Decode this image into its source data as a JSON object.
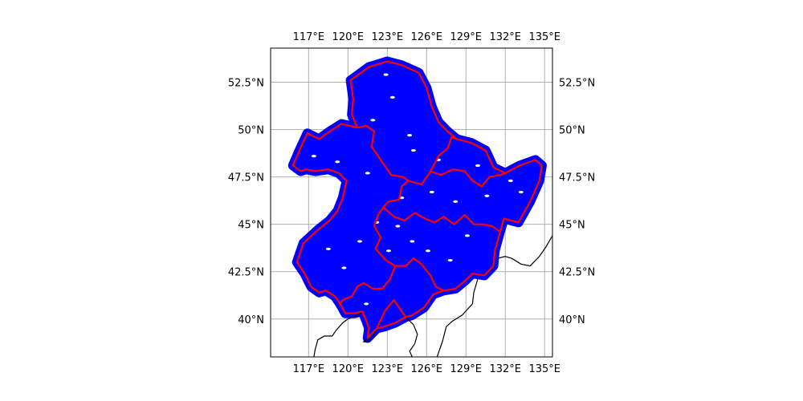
{
  "figure": {
    "background_color": "#ffffff",
    "title": ""
  },
  "map": {
    "projection": "plate-carree",
    "extent": {
      "lon_min": 114.1,
      "lon_max": 135.6,
      "lat_min": 38.0,
      "lat_max": 54.3
    },
    "gridlines": true,
    "grid_color": "#b0b0b0",
    "lon_ticks": [
      {
        "value": 117,
        "label": "117°E"
      },
      {
        "value": 120,
        "label": "120°E"
      },
      {
        "value": 123,
        "label": "123°E"
      },
      {
        "value": 126,
        "label": "126°E"
      },
      {
        "value": 129,
        "label": "129°E"
      },
      {
        "value": 132,
        "label": "132°E"
      },
      {
        "value": 135,
        "label": "135°E"
      }
    ],
    "lat_ticks": [
      {
        "value": 52.5,
        "label": "52.5°N"
      },
      {
        "value": 50,
        "label": "50°N"
      },
      {
        "value": 47.5,
        "label": "47.5°N"
      },
      {
        "value": 45,
        "label": "45°N"
      },
      {
        "value": 42.5,
        "label": "42.5°N"
      },
      {
        "value": 40,
        "label": "40°N"
      }
    ],
    "label_sides": {
      "lon": [
        "top",
        "bottom"
      ],
      "lat": [
        "left",
        "right"
      ]
    },
    "layers": {
      "points": {
        "color": "#0000ff",
        "description_name": "scatter-points-blue"
      },
      "boundaries": {
        "color": "#ff0000"
      },
      "coastline": {
        "color": "#000000"
      }
    },
    "region_outline": [
      [
        115.8,
        48.1
      ],
      [
        116.3,
        48.9
      ],
      [
        116.9,
        49.8
      ],
      [
        117.8,
        49.5
      ],
      [
        118.6,
        49.9
      ],
      [
        119.5,
        50.3
      ],
      [
        120.7,
        50.1
      ],
      [
        120.3,
        50.8
      ],
      [
        120.4,
        51.6
      ],
      [
        120.2,
        52.6
      ],
      [
        121.6,
        53.3
      ],
      [
        123.0,
        53.6
      ],
      [
        124.1,
        53.4
      ],
      [
        125.4,
        53.0
      ],
      [
        126.0,
        52.2
      ],
      [
        126.4,
        51.2
      ],
      [
        126.9,
        50.4
      ],
      [
        127.6,
        49.9
      ],
      [
        128.3,
        49.5
      ],
      [
        129.4,
        49.3
      ],
      [
        130.5,
        48.9
      ],
      [
        131.1,
        48.0
      ],
      [
        132.0,
        47.7
      ],
      [
        133.1,
        48.1
      ],
      [
        134.3,
        48.4
      ],
      [
        134.8,
        48.1
      ],
      [
        134.6,
        47.3
      ],
      [
        133.9,
        46.2
      ],
      [
        133.0,
        45.1
      ],
      [
        131.9,
        45.3
      ],
      [
        131.6,
        44.6
      ],
      [
        131.2,
        43.6
      ],
      [
        131.1,
        42.8
      ],
      [
        130.4,
        42.3
      ],
      [
        129.5,
        42.4
      ],
      [
        128.9,
        42.0
      ],
      [
        128.2,
        41.6
      ],
      [
        127.3,
        41.5
      ],
      [
        126.5,
        41.3
      ],
      [
        125.8,
        40.6
      ],
      [
        124.9,
        40.2
      ],
      [
        124.4,
        40.1
      ],
      [
        123.6,
        39.8
      ],
      [
        122.8,
        39.6
      ],
      [
        122.2,
        39.5
      ],
      [
        121.5,
        39.0
      ],
      [
        121.6,
        39.5
      ],
      [
        121.4,
        39.9
      ],
      [
        121.1,
        40.4
      ],
      [
        120.5,
        40.3
      ],
      [
        119.8,
        40.3
      ],
      [
        119.4,
        40.8
      ],
      [
        119.0,
        41.2
      ],
      [
        118.3,
        41.5
      ],
      [
        117.8,
        41.4
      ],
      [
        117.2,
        41.7
      ],
      [
        116.7,
        42.4
      ],
      [
        116.1,
        43.0
      ],
      [
        116.6,
        44.0
      ],
      [
        117.7,
        44.7
      ],
      [
        118.6,
        45.2
      ],
      [
        119.2,
        45.7
      ],
      [
        119.6,
        46.4
      ],
      [
        119.9,
        47.3
      ],
      [
        119.3,
        47.7
      ],
      [
        118.5,
        47.9
      ],
      [
        117.5,
        47.8
      ],
      [
        116.8,
        47.9
      ],
      [
        116.4,
        47.8
      ],
      [
        115.8,
        48.1
      ]
    ],
    "province_borders": [
      [
        [
          120.7,
          50.1
        ],
        [
          121.4,
          50.2
        ],
        [
          122.0,
          49.9
        ],
        [
          121.8,
          49.1
        ],
        [
          122.4,
          48.5
        ],
        [
          122.8,
          48.1
        ],
        [
          123.3,
          47.6
        ],
        [
          124.2,
          47.5
        ],
        [
          124.6,
          47.3
        ],
        [
          124.1,
          47.0
        ],
        [
          123.9,
          46.3
        ],
        [
          123.1,
          46.2
        ],
        [
          122.7,
          45.9
        ],
        [
          122.3,
          45.5
        ],
        [
          122.0,
          44.9
        ],
        [
          122.5,
          44.3
        ],
        [
          122.1,
          43.7
        ],
        [
          122.9,
          43.1
        ],
        [
          123.6,
          42.8
        ],
        [
          123.2,
          42.1
        ],
        [
          122.6,
          41.6
        ],
        [
          121.9,
          41.6
        ],
        [
          121.2,
          41.9
        ],
        [
          120.7,
          41.7
        ],
        [
          120.3,
          41.2
        ],
        [
          119.6,
          41.0
        ],
        [
          119.4,
          40.8
        ]
      ],
      [
        [
          124.6,
          47.3
        ],
        [
          125.6,
          47.1
        ],
        [
          126.3,
          47.8
        ],
        [
          126.9,
          48.6
        ],
        [
          127.6,
          49.0
        ],
        [
          127.9,
          49.6
        ],
        [
          128.3,
          49.5
        ]
      ],
      [
        [
          126.3,
          47.8
        ],
        [
          127.1,
          47.6
        ],
        [
          128.0,
          47.9
        ],
        [
          128.9,
          47.8
        ],
        [
          129.5,
          47.3
        ],
        [
          130.2,
          47.0
        ],
        [
          130.8,
          47.5
        ],
        [
          131.6,
          47.6
        ],
        [
          132.0,
          47.7
        ]
      ],
      [
        [
          122.7,
          45.9
        ],
        [
          123.5,
          45.4
        ],
        [
          124.3,
          45.2
        ],
        [
          125.1,
          45.6
        ],
        [
          125.9,
          45.3
        ],
        [
          126.6,
          45.1
        ],
        [
          127.3,
          45.4
        ],
        [
          128.1,
          45.0
        ],
        [
          128.9,
          45.5
        ],
        [
          129.6,
          45.0
        ],
        [
          130.3,
          45.0
        ],
        [
          131.0,
          44.9
        ],
        [
          131.6,
          44.6
        ]
      ],
      [
        [
          123.6,
          42.8
        ],
        [
          124.4,
          42.8
        ],
        [
          125.0,
          43.2
        ],
        [
          125.6,
          42.9
        ],
        [
          126.3,
          42.3
        ],
        [
          126.7,
          41.7
        ],
        [
          127.3,
          41.5
        ]
      ],
      [
        [
          122.2,
          39.5
        ],
        [
          122.8,
          40.4
        ],
        [
          123.5,
          41.0
        ],
        [
          124.4,
          40.1
        ]
      ]
    ],
    "coastline_outer": [
      [
        131.4,
        43.2
      ],
      [
        132.0,
        43.3
      ],
      [
        132.5,
        43.2
      ],
      [
        133.2,
        42.9
      ],
      [
        133.9,
        42.8
      ],
      [
        134.6,
        43.3
      ],
      [
        135.1,
        43.8
      ],
      [
        135.6,
        44.4
      ]
    ],
    "coastline_korea": [
      [
        124.4,
        40.1
      ],
      [
        125.0,
        39.7
      ],
      [
        125.3,
        39.2
      ],
      [
        125.1,
        38.7
      ],
      [
        124.7,
        38.3
      ],
      [
        124.9,
        38.0
      ]
    ],
    "coastline_korea_east": [
      [
        129.9,
        42.1
      ],
      [
        129.6,
        41.4
      ],
      [
        129.5,
        40.8
      ],
      [
        128.7,
        40.2
      ],
      [
        128.0,
        39.9
      ],
      [
        127.5,
        39.6
      ],
      [
        127.2,
        38.8
      ],
      [
        126.8,
        38.0
      ]
    ],
    "coastline_china": [
      [
        121.1,
        40.4
      ],
      [
        120.7,
        40.2
      ],
      [
        120.0,
        40.0
      ],
      [
        119.6,
        39.8
      ],
      [
        119.1,
        39.4
      ],
      [
        118.8,
        39.1
      ],
      [
        118.2,
        39.1
      ],
      [
        117.7,
        38.9
      ],
      [
        117.5,
        38.4
      ],
      [
        117.4,
        38.0
      ]
    ],
    "coastline_liaodong": [
      [
        122.2,
        39.5
      ],
      [
        121.9,
        39.1
      ],
      [
        121.5,
        38.8
      ],
      [
        121.2,
        38.8
      ],
      [
        121.5,
        39.0
      ]
    ],
    "lakes": [
      [
        123.4,
        51.7
      ],
      [
        121.9,
        50.5
      ],
      [
        124.7,
        49.7
      ],
      [
        126.9,
        48.4
      ],
      [
        121.5,
        47.7
      ],
      [
        119.2,
        48.3
      ],
      [
        117.4,
        48.6
      ],
      [
        126.4,
        46.7
      ],
      [
        128.2,
        46.2
      ],
      [
        130.6,
        46.5
      ],
      [
        133.2,
        46.7
      ],
      [
        132.4,
        47.3
      ],
      [
        124.1,
        46.4
      ],
      [
        122.2,
        45.1
      ],
      [
        124.9,
        44.1
      ],
      [
        127.8,
        43.1
      ],
      [
        123.1,
        43.6
      ],
      [
        120.9,
        44.1
      ],
      [
        119.7,
        42.7
      ],
      [
        121.4,
        40.8
      ],
      [
        125.0,
        48.9
      ],
      [
        127.6,
        51.3
      ],
      [
        122.9,
        52.9
      ],
      [
        129.9,
        48.1
      ],
      [
        129.1,
        44.4
      ],
      [
        123.8,
        44.9
      ],
      [
        118.5,
        43.7
      ],
      [
        126.1,
        43.6
      ]
    ]
  }
}
